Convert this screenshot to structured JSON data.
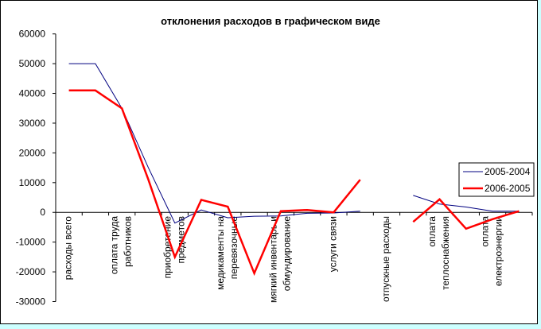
{
  "chart_data": {
    "type": "line",
    "title": "отклонения расходов в графическом виде",
    "xlabel": "",
    "ylabel": "",
    "ylim": [
      -30000,
      60000
    ],
    "yticks": [
      60000,
      50000,
      40000,
      30000,
      20000,
      10000,
      0,
      -10000,
      -20000,
      -30000
    ],
    "grid": false,
    "legend_position": "right",
    "categories": [
      [
        "расходы всего"
      ],
      [],
      [
        "оплата труда",
        "работников"
      ],
      [],
      [
        "приобретение",
        "предметов"
      ],
      [],
      [
        "медикаменты на",
        "перевязочные"
      ],
      [],
      [
        "мягкий инвентарь и",
        "обмундирование"
      ],
      [],
      [
        "услуги связи"
      ],
      [],
      [
        "отпускные расходы"
      ],
      [],
      [
        "оплата",
        "теплоснабжения"
      ],
      [],
      [
        "оплата",
        "електроэнергии"
      ],
      []
    ],
    "series": [
      {
        "name": "2005-2004",
        "color": "#000080",
        "width": 1,
        "values": [
          50000,
          50000,
          35000,
          15000,
          -3600,
          800,
          -1800,
          -1300,
          -1200,
          -300,
          -200,
          400,
          null,
          5700,
          2800,
          1800,
          400,
          400
        ]
      },
      {
        "name": "2006-2005",
        "color": "#ff0000",
        "width": 2.5,
        "values": [
          41000,
          41000,
          35000,
          11000,
          -15000,
          4200,
          1900,
          -20500,
          400,
          800,
          0,
          11000,
          null,
          -3200,
          4400,
          -5500,
          -2300,
          400
        ]
      }
    ]
  }
}
